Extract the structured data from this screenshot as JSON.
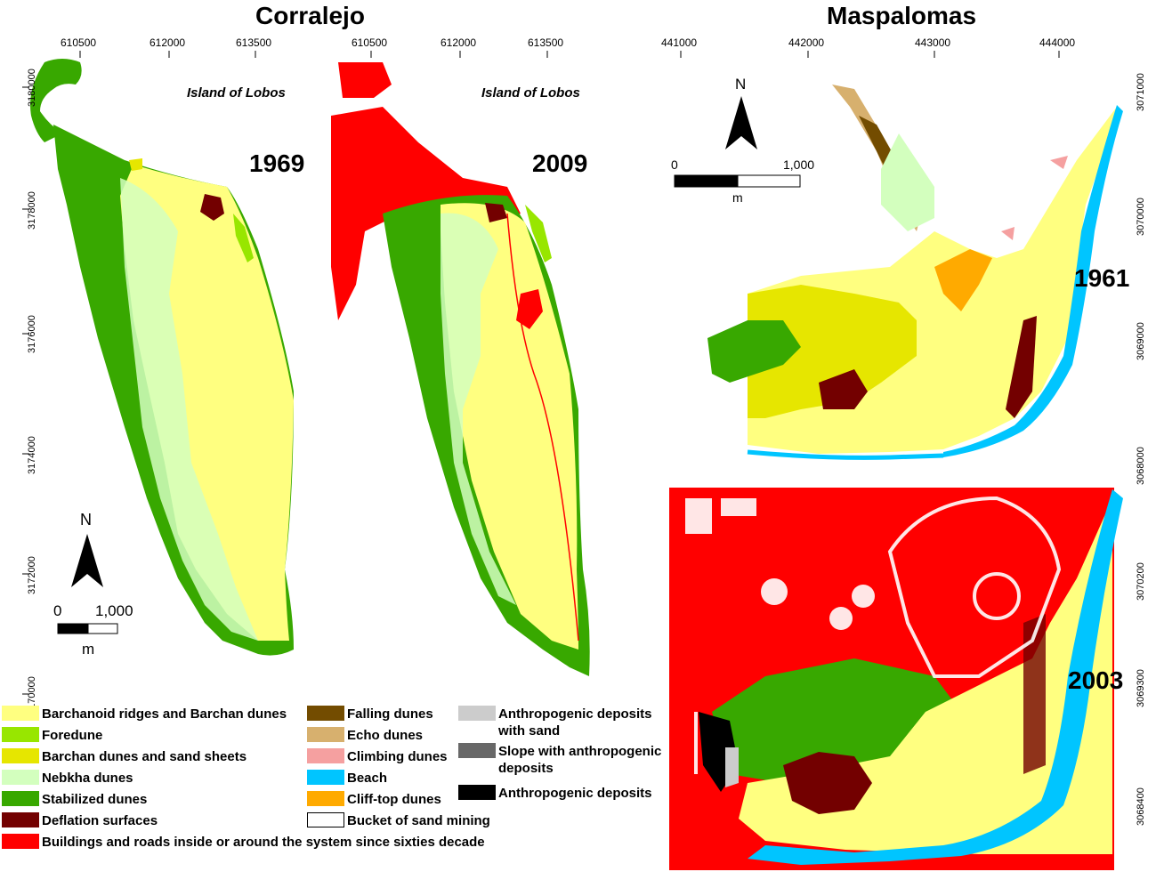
{
  "titles": {
    "left": "Corralejo",
    "right": "Maspalomas"
  },
  "years": {
    "corralejo_a": "1969",
    "corralejo_b": "2009",
    "maspalomas_a": "1961",
    "maspalomas_b": "2003"
  },
  "place_labels": {
    "lobos_a": "Island of Lobos",
    "lobos_b": "Island of Lobos"
  },
  "ticks": {
    "corralejo_a_x": [
      "610500",
      "612000",
      "613500"
    ],
    "corralejo_b_x": [
      "610500",
      "612000",
      "613500"
    ],
    "corralejo_y": [
      "3180000",
      "3178000",
      "3176000",
      "3174000",
      "3172000",
      "3170000"
    ],
    "maspalomas_x": [
      "441000",
      "442000",
      "443000",
      "444000"
    ],
    "maspalomas_y": [
      "3071000",
      "3070000",
      "3069000",
      "3068000",
      "3070200",
      "3069300",
      "3068400"
    ]
  },
  "scale_corralejo": {
    "zero": "0",
    "max": "1,000",
    "unit": "m",
    "north": "N"
  },
  "scale_maspalomas": {
    "zero": "0",
    "max": "1,000",
    "unit": "m",
    "north": "N"
  },
  "colors": {
    "barchanoid": "#ffff80",
    "foredune": "#98e600",
    "barchan_sheets": "#e6e600",
    "nebkha": "#d3ffbe",
    "stabilized": "#38a800",
    "deflation": "#730000",
    "buildings": "#ff0000",
    "falling": "#734c00",
    "echo": "#d7b06e",
    "climbing": "#f5a0a0",
    "beach": "#00c5ff",
    "clifftop": "#ffaa00",
    "bucket": "#ffffff",
    "anthro_sand": "#cccccc",
    "slope_anthro": "#686868",
    "anthro": "#000000"
  },
  "legend": {
    "col1": [
      {
        "label": "Barchanoid ridges and Barchan dunes",
        "color": "#ffff80"
      },
      {
        "label": "Foredune",
        "color": "#98e600"
      },
      {
        "label": "Barchan dunes and sand sheets",
        "color": "#e6e600"
      },
      {
        "label": "Nebkha dunes",
        "color": "#d3ffbe"
      },
      {
        "label": "Stabilized dunes",
        "color": "#38a800"
      },
      {
        "label": "Deflation surfaces",
        "color": "#730000"
      },
      {
        "label": "Buildings and roads inside or around the system since sixties decade",
        "color": "#ff0000"
      }
    ],
    "col2": [
      {
        "label": "Falling dunes",
        "color": "#734c00"
      },
      {
        "label": "Echo dunes",
        "color": "#d7b06e"
      },
      {
        "label": "Climbing dunes",
        "color": "#f5a0a0"
      },
      {
        "label": "Beach",
        "color": "#00c5ff"
      },
      {
        "label": "Cliff-top dunes",
        "color": "#ffaa00"
      },
      {
        "label": "Bucket of sand mining",
        "color": "#ffffff"
      }
    ],
    "col3": [
      {
        "label": "Anthropogenic deposits with sand",
        "color": "#cccccc"
      },
      {
        "label": "Slope with anthropogenic deposits",
        "color": "#686868"
      },
      {
        "label": "Anthropogenic deposits",
        "color": "#000000"
      }
    ]
  }
}
